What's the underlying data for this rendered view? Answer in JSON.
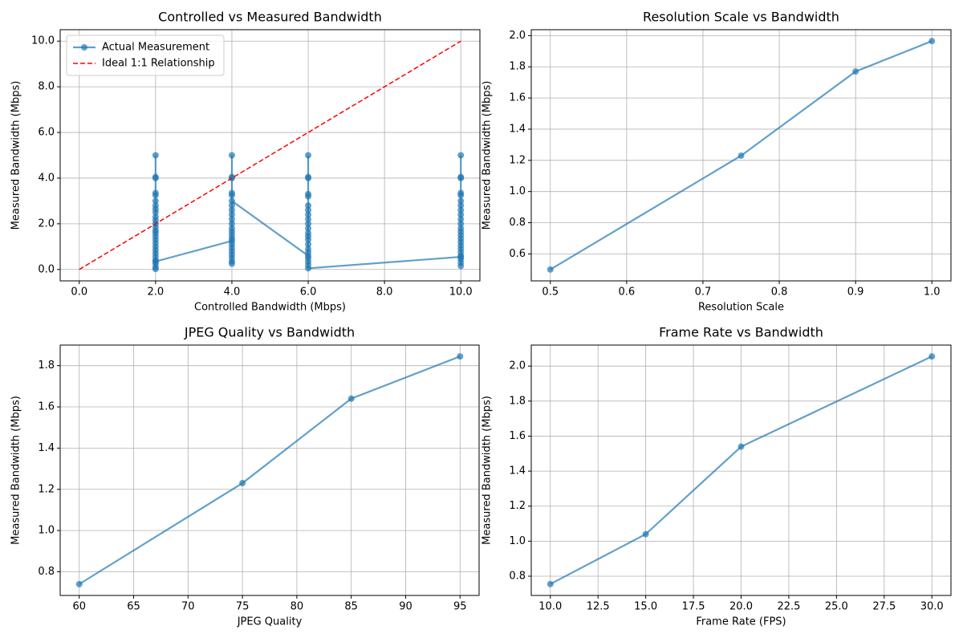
{
  "chart_data": [
    {
      "type": "line",
      "title": "Controlled vs Measured Bandwidth",
      "xlabel": "Controlled Bandwidth (Mbps)",
      "ylabel": "Measured Bandwidth (Mbps)",
      "xlim": [
        -0.5,
        10.5
      ],
      "ylim": [
        -0.5,
        10.5
      ],
      "xticks": [
        {
          "value": 0,
          "label": "0.0"
        },
        {
          "value": 2,
          "label": "2.0"
        },
        {
          "value": 4,
          "label": "4.0"
        },
        {
          "value": 6,
          "label": "6.0"
        },
        {
          "value": 8,
          "label": "8.0"
        },
        {
          "value": 10,
          "label": "10.0"
        }
      ],
      "yticks": [
        {
          "value": 0,
          "label": "0.0"
        },
        {
          "value": 2,
          "label": "2.0"
        },
        {
          "value": 4,
          "label": "4.0"
        },
        {
          "value": 6,
          "label": "6.0"
        },
        {
          "value": 8,
          "label": "8.0"
        },
        {
          "value": 10,
          "label": "10.0"
        }
      ],
      "grid": true,
      "legend": "upper left",
      "series": [
        {
          "name": "Actual Measurement",
          "color": "#1f77b4",
          "alpha": 0.7,
          "linestyle": "solid",
          "marker": "o",
          "x": [
            2,
            2,
            2,
            2,
            2,
            2,
            2,
            2,
            2,
            2,
            2,
            2,
            2,
            2,
            2,
            2,
            2,
            2,
            2,
            2,
            2,
            2,
            2,
            2,
            2,
            2,
            2,
            4,
            4,
            4,
            4,
            4,
            4,
            4,
            4,
            4,
            4,
            4,
            4,
            4,
            4,
            4,
            4,
            4,
            4,
            4,
            4,
            4,
            4,
            4,
            6,
            6,
            6,
            6,
            6,
            6,
            6,
            6,
            6,
            6,
            6,
            6,
            6,
            6,
            6,
            6,
            6,
            6,
            6,
            6,
            6,
            6,
            10,
            10,
            10,
            10,
            10,
            10,
            10,
            10,
            10,
            10,
            10,
            10,
            10,
            10,
            10,
            10,
            10,
            10,
            10,
            10,
            10,
            10,
            10,
            10
          ],
          "values": [
            5.0,
            4.05,
            4.0,
            3.35,
            3.25,
            3.0,
            2.8,
            2.65,
            2.5,
            2.3,
            2.15,
            2.0,
            1.85,
            1.7,
            1.6,
            1.45,
            1.3,
            1.15,
            1.0,
            0.85,
            0.7,
            0.55,
            0.4,
            0.25,
            0.1,
            0.02,
            0.35,
            1.25,
            5.0,
            4.05,
            4.0,
            3.35,
            3.25,
            2.8,
            2.6,
            2.4,
            2.2,
            2.0,
            1.8,
            1.65,
            1.5,
            1.35,
            1.1,
            0.95,
            0.8,
            0.65,
            0.5,
            0.35,
            0.25,
            3.0,
            0.6,
            5.0,
            4.05,
            4.0,
            3.3,
            3.2,
            2.8,
            2.6,
            2.4,
            2.2,
            2.0,
            1.8,
            1.6,
            1.45,
            1.3,
            1.1,
            0.9,
            0.75,
            0.5,
            0.35,
            0.2,
            0.05,
            0.55,
            5.0,
            4.05,
            4.0,
            3.35,
            3.25,
            3.0,
            2.8,
            2.6,
            2.4,
            2.2,
            2.0,
            1.8,
            1.65,
            1.5,
            1.35,
            1.2,
            1.05,
            0.9,
            0.75,
            0.6,
            0.45,
            0.3,
            0.15
          ]
        },
        {
          "name": "Ideal 1:1 Relationship",
          "color": "#ff0000",
          "alpha": 1,
          "linestyle": "dashed",
          "x": [
            0,
            10
          ],
          "values": [
            0,
            10
          ]
        }
      ]
    },
    {
      "type": "line",
      "title": "Resolution Scale vs Bandwidth",
      "xlabel": "Resolution Scale",
      "ylabel": "Measured Bandwidth (Mbps)",
      "xlim": [
        0.475,
        1.025
      ],
      "ylim": [
        0.427,
        2.038
      ],
      "xticks": [
        0.5,
        0.6,
        0.7,
        0.8,
        0.9,
        {
          "value": 1,
          "label": "1.0"
        }
      ],
      "yticks": [
        0.6,
        0.8,
        {
          "value": 1,
          "label": "1.0"
        },
        1.2,
        1.4,
        1.6,
        1.8,
        {
          "value": 2,
          "label": "2.0"
        }
      ],
      "grid": true,
      "series": [
        {
          "color": "#1f77b4",
          "alpha": 0.7,
          "linestyle": "solid",
          "marker": "o",
          "x": [
            0.5,
            0.75,
            0.9,
            1.0
          ],
          "values": [
            0.5,
            1.23,
            1.77,
            1.965
          ]
        }
      ]
    },
    {
      "type": "line",
      "title": "JPEG Quality vs Bandwidth",
      "xlabel": "JPEG Quality",
      "ylabel": "Measured Bandwidth (Mbps)",
      "xlim": [
        58.25,
        96.75
      ],
      "ylim": [
        0.685,
        1.9
      ],
      "xticks": [
        60,
        65,
        70,
        75,
        80,
        85,
        90,
        95
      ],
      "yticks": [
        0.8,
        {
          "value": 1,
          "label": "1.0"
        },
        1.2,
        1.4,
        1.6,
        1.8
      ],
      "grid": true,
      "series": [
        {
          "color": "#1f77b4",
          "alpha": 0.7,
          "linestyle": "solid",
          "marker": "o",
          "x": [
            60,
            75,
            85,
            95
          ],
          "values": [
            0.74,
            1.23,
            1.64,
            1.845
          ]
        }
      ]
    },
    {
      "type": "line",
      "title": "Frame Rate vs Bandwidth",
      "xlabel": "Frame Rate (FPS)",
      "ylabel": "Measured Bandwidth (Mbps)",
      "xlim": [
        9,
        31
      ],
      "ylim": [
        0.69,
        2.12
      ],
      "xticks": [
        {
          "value": 10,
          "label": "10.0"
        },
        12.5,
        {
          "value": 15,
          "label": "15.0"
        },
        17.5,
        {
          "value": 20,
          "label": "20.0"
        },
        22.5,
        {
          "value": 25,
          "label": "25.0"
        },
        27.5,
        {
          "value": 30,
          "label": "30.0"
        }
      ],
      "yticks": [
        0.8,
        {
          "value": 1,
          "label": "1.0"
        },
        1.2,
        1.4,
        1.6,
        1.8,
        {
          "value": 2,
          "label": "2.0"
        }
      ],
      "grid": true,
      "series": [
        {
          "color": "#1f77b4",
          "alpha": 0.7,
          "linestyle": "solid",
          "marker": "o",
          "x": [
            10,
            15,
            20,
            30
          ],
          "values": [
            0.755,
            1.04,
            1.54,
            2.055
          ]
        }
      ]
    }
  ]
}
